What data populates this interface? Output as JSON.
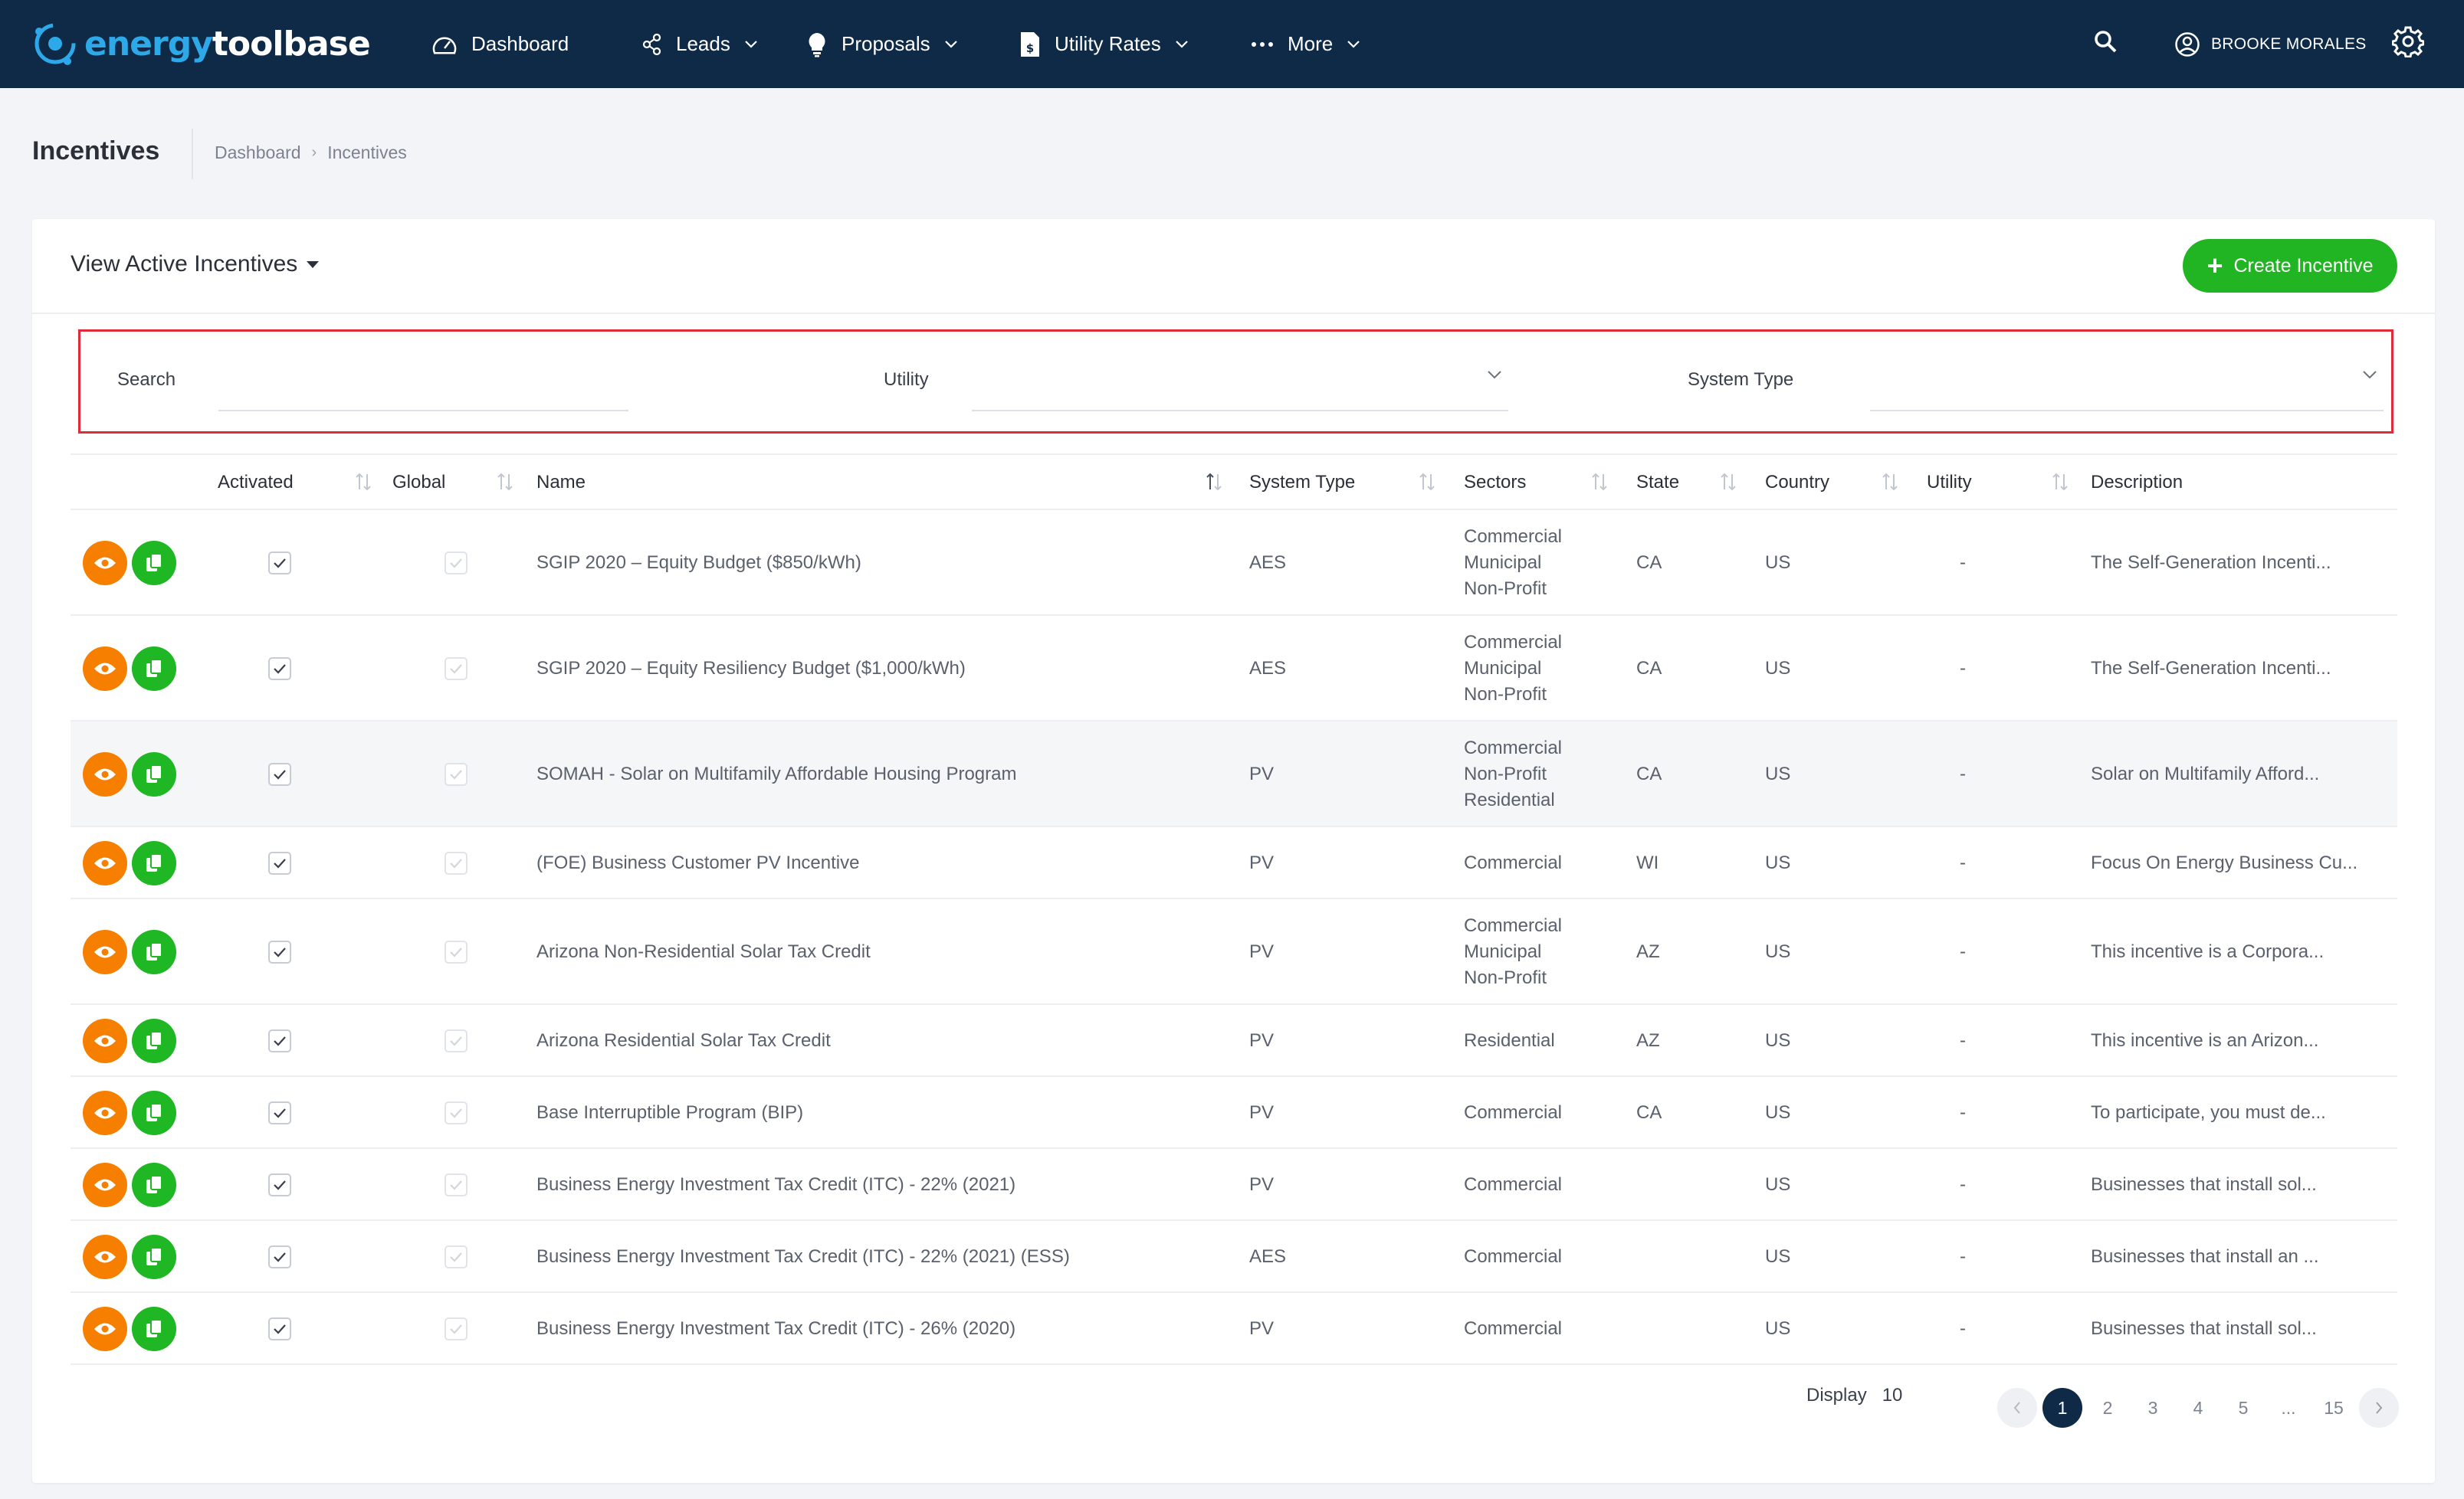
{
  "navbar": {
    "brand_part1": "energy",
    "brand_part2": "toolbase",
    "items": [
      {
        "label": "Dashboard",
        "icon": "dashboard-gauge-icon",
        "dropdown": false
      },
      {
        "label": "Leads",
        "icon": "leads-network-icon",
        "dropdown": true
      },
      {
        "label": "Proposals",
        "icon": "lightbulb-icon",
        "dropdown": true
      },
      {
        "label": "Utility Rates",
        "icon": "rate-document-icon",
        "dropdown": true
      },
      {
        "label": "More",
        "icon": "more-dots-icon",
        "dropdown": true
      }
    ],
    "user_name": "BROOKE MORALES"
  },
  "page": {
    "title": "Incentives",
    "breadcrumb": [
      "Dashboard",
      "Incentives"
    ]
  },
  "card": {
    "view_label": "View Active Incentives",
    "create_label": "Create Incentive"
  },
  "filters": {
    "search_label": "Search",
    "search_value": "",
    "utility_label": "Utility",
    "utility_value": "",
    "system_type_label": "System Type",
    "system_type_value": ""
  },
  "table": {
    "columns": [
      "Activated",
      "Global",
      "Name",
      "System Type",
      "Sectors",
      "State",
      "Country",
      "Utility",
      "Description"
    ],
    "rows": [
      {
        "activated": true,
        "global": false,
        "name": "SGIP 2020 – Equity Budget ($850/kWh)",
        "system_type": "AES",
        "sectors": [
          "Commercial",
          "Municipal",
          "Non-Profit"
        ],
        "state": "CA",
        "country": "US",
        "utility": "-",
        "description": "The Self-Generation Incenti..."
      },
      {
        "activated": true,
        "global": false,
        "name": "SGIP 2020 – Equity Resiliency Budget ($1,000/kWh)",
        "system_type": "AES",
        "sectors": [
          "Commercial",
          "Municipal",
          "Non-Profit"
        ],
        "state": "CA",
        "country": "US",
        "utility": "-",
        "description": "The Self-Generation Incenti..."
      },
      {
        "activated": true,
        "global": false,
        "name": "SOMAH - Solar on Multifamily Affordable Housing Program",
        "system_type": "PV",
        "sectors": [
          "Commercial",
          "Non-Profit",
          "Residential"
        ],
        "state": "CA",
        "country": "US",
        "utility": "-",
        "description": "Solar on Multifamily Afford..."
      },
      {
        "activated": true,
        "global": false,
        "name": "(FOE) Business Customer PV Incentive",
        "system_type": "PV",
        "sectors": [
          "Commercial"
        ],
        "state": "WI",
        "country": "US",
        "utility": "-",
        "description": "Focus On Energy Business Cu..."
      },
      {
        "activated": true,
        "global": false,
        "name": "Arizona Non-Residential Solar Tax Credit",
        "system_type": "PV",
        "sectors": [
          "Commercial",
          "Municipal",
          "Non-Profit"
        ],
        "state": "AZ",
        "country": "US",
        "utility": "-",
        "description": "This incentive is a Corpora..."
      },
      {
        "activated": true,
        "global": false,
        "name": "Arizona Residential Solar Tax Credit",
        "system_type": "PV",
        "sectors": [
          "Residential"
        ],
        "state": "AZ",
        "country": "US",
        "utility": "-",
        "description": "This incentive is an Arizon..."
      },
      {
        "activated": true,
        "global": false,
        "name": "Base Interruptible Program (BIP)",
        "system_type": "PV",
        "sectors": [
          "Commercial"
        ],
        "state": "CA",
        "country": "US",
        "utility": "-",
        "description": "To participate, you must de..."
      },
      {
        "activated": true,
        "global": false,
        "name": "Business Energy Investment Tax Credit (ITC) - 22% (2021)",
        "system_type": "PV",
        "sectors": [
          "Commercial"
        ],
        "state": "",
        "country": "US",
        "utility": "-",
        "description": "Businesses that install sol..."
      },
      {
        "activated": true,
        "global": false,
        "name": "Business Energy Investment Tax Credit (ITC) - 22% (2021) (ESS)",
        "system_type": "AES",
        "sectors": [
          "Commercial"
        ],
        "state": "",
        "country": "US",
        "utility": "-",
        "description": "Businesses that install an ..."
      },
      {
        "activated": true,
        "global": false,
        "name": "Business Energy Investment Tax Credit (ITC) - 26% (2020)",
        "system_type": "PV",
        "sectors": [
          "Commercial"
        ],
        "state": "",
        "country": "US",
        "utility": "-",
        "description": "Businesses that install sol..."
      }
    ]
  },
  "pagination": {
    "display_label": "Display",
    "display_value": "10",
    "pages": [
      "1",
      "2",
      "3",
      "4",
      "5",
      "...",
      "15"
    ],
    "current": "1"
  },
  "colors": {
    "navbar": "#0e2a47",
    "accent_green": "#21b523",
    "view_orange": "#f77f00",
    "highlight_border": "#e02c3a"
  }
}
